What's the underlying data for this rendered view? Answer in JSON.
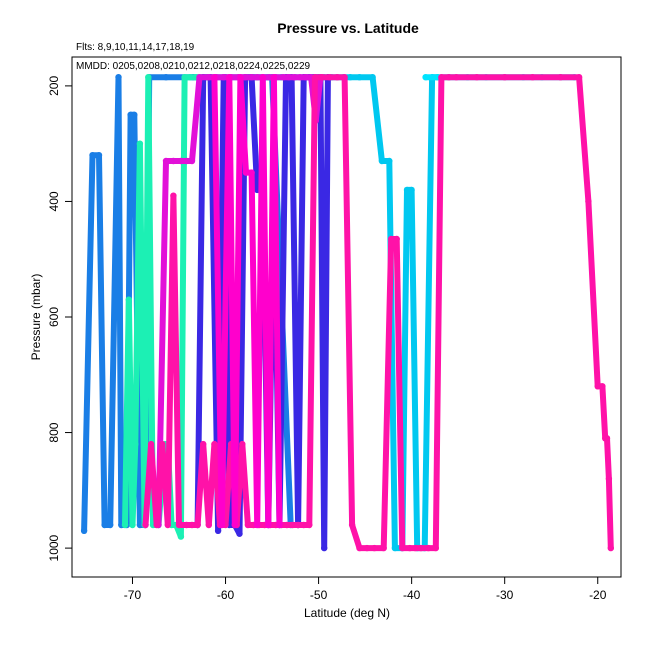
{
  "chart_data": {
    "type": "line",
    "title": "Pressure vs. Latitude",
    "subtitle": "Flts: 8,9,10,11,14,17,18,19",
    "legend_note": "MMDD: 0205,0208,0210,0212,0218,0224,0225,0229",
    "xlabel": "Latitude (deg N)",
    "ylabel": "Pressure (mbar)",
    "xlim": [
      -76.5,
      -17.5
    ],
    "ylim": [
      1050,
      150
    ],
    "y_reversed": true,
    "grid": false,
    "xticks": [
      -70,
      -60,
      -50,
      -40,
      -30,
      -20
    ],
    "yticks": [
      200,
      400,
      600,
      800,
      1000
    ],
    "series": [
      {
        "color": "#1a7ee6",
        "x": [
          -75.2,
          -74.3,
          -73.6,
          -73.0,
          -72.4,
          -71.5,
          -71.2,
          -70.6,
          -70.2,
          -69.8,
          -69.2,
          -68.6,
          -68.2,
          -66.4,
          -63.5,
          -60.0,
          -57.0,
          -55.0,
          -53.0
        ],
        "y": [
          970,
          320,
          320,
          960,
          960,
          185,
          960,
          960,
          250,
          250,
          960,
          960,
          185,
          185,
          185,
          185,
          185,
          185,
          960
        ]
      },
      {
        "color": "#00c8f0",
        "x": [
          -57.5,
          -55.5,
          -54.0,
          -52.5,
          -51.5,
          -50.6,
          -50.0,
          -49.4,
          -48.6,
          -48.0,
          -47.3,
          -46.6,
          -45.6,
          -44.2,
          -43.2,
          -42.4,
          -41.8,
          -41.0,
          -40.5,
          -40.0,
          -39.4,
          -38.6,
          -37.8,
          -37.2
        ],
        "y": [
          185,
          185,
          185,
          185,
          185,
          185,
          185,
          185,
          185,
          185,
          185,
          185,
          185,
          185,
          330,
          330,
          1000,
          1000,
          380,
          380,
          1000,
          1000,
          185,
          185
        ]
      },
      {
        "color": "#00e4ff",
        "x": [
          -38.5,
          -36.0,
          -34.0,
          -32.0,
          -30.0,
          -28.0,
          -26.0,
          -24.0,
          -22.5
        ],
        "y": [
          185,
          185,
          185,
          185,
          185,
          185,
          185,
          185,
          185
        ]
      },
      {
        "color": "#1cf0b4",
        "x": [
          -70.8,
          -70.4,
          -70.0,
          -69.7,
          -69.2,
          -68.7,
          -68.3,
          -67.8,
          -67.2,
          -66.5,
          -66.2,
          -65.8,
          -65.3,
          -64.8,
          -64.4,
          -63.8,
          -63.2,
          -62.4,
          -61.6,
          -61.0
        ],
        "y": [
          960,
          570,
          960,
          820,
          300,
          960,
          185,
          960,
          960,
          820,
          820,
          960,
          960,
          980,
          185,
          185,
          185,
          185,
          185,
          185
        ]
      },
      {
        "color": "#3a28e4",
        "x": [
          -63.0,
          -62.4,
          -61.6,
          -60.8,
          -60.2,
          -59.6,
          -59.0,
          -58.5,
          -57.9,
          -57.2,
          -56.6,
          -56.0,
          -55.4,
          -54.8,
          -54.2,
          -53.5,
          -52.9,
          -52.2,
          -51.6,
          -51.0,
          -50.4,
          -49.8,
          -49.4,
          -49.0
        ],
        "y": [
          960,
          185,
          185,
          970,
          185,
          960,
          960,
          975,
          185,
          185,
          380,
          380,
          960,
          380,
          960,
          185,
          185,
          960,
          185,
          185,
          185,
          185,
          1000,
          185
        ]
      },
      {
        "color": "#e210d8",
        "x": [
          -67.2,
          -66.4,
          -65.6,
          -64.8,
          -64.2,
          -63.6,
          -62.8,
          -61.8,
          -61.0,
          -60.2,
          -59.4,
          -58.6,
          -57.9,
          -57.2,
          -56.6,
          -56.0,
          -55.3,
          -54.6,
          -53.8,
          -53.2,
          -52.6,
          -52.0,
          -51.4,
          -50.8,
          -50.3,
          -49.8
        ],
        "y": [
          960,
          330,
          330,
          330,
          330,
          330,
          185,
          185,
          185,
          185,
          185,
          185,
          185,
          185,
          185,
          185,
          185,
          185,
          185,
          185,
          185,
          185,
          185,
          185,
          260,
          185
        ]
      },
      {
        "color": "#ff12a8",
        "x": [
          -68.6,
          -68.0,
          -67.4,
          -66.8,
          -66.2,
          -65.6,
          -65.0,
          -64.2,
          -63.6,
          -63.0,
          -62.4,
          -61.8,
          -61.2,
          -60.6,
          -60.0,
          -59.4,
          -58.8,
          -58.2,
          -57.6,
          -57.0,
          -56.4,
          -55.8,
          -55.2,
          -54.6,
          -54.0,
          -53.4,
          -52.8,
          -52.2,
          -51.6,
          -51.0,
          -50.4,
          -49.6,
          -48.8,
          -48.0,
          -47.2,
          -46.4,
          -45.6,
          -44.8,
          -44.0,
          -43.0,
          -42.2,
          -41.6,
          -41.0,
          -40.2,
          -39.6,
          -39.0,
          -38.2,
          -37.4,
          -36.8,
          -36.0,
          -35.2,
          -33.0,
          -30.0,
          -27.0,
          -24.0,
          -22.0,
          -21.0,
          -20.0,
          -19.5,
          -19.2,
          -19.0,
          -18.8,
          -18.6
        ],
        "y": [
          960,
          820,
          960,
          820,
          960,
          390,
          960,
          960,
          960,
          960,
          820,
          960,
          820,
          960,
          960,
          820,
          960,
          820,
          960,
          960,
          960,
          960,
          960,
          960,
          960,
          960,
          960,
          960,
          960,
          960,
          185,
          185,
          185,
          185,
          185,
          960,
          1000,
          1000,
          1000,
          1000,
          465,
          465,
          1000,
          1000,
          1000,
          1000,
          1000,
          1000,
          185,
          185,
          185,
          185,
          185,
          185,
          185,
          185,
          400,
          720,
          720,
          810,
          810,
          880,
          1000
        ]
      },
      {
        "color": "#ff00cc",
        "x": [
          -61.2,
          -60.4,
          -59.6,
          -59.0,
          -58.4,
          -57.8,
          -57.2,
          -56.6,
          -56.0,
          -55.4,
          -54.8,
          -54.2
        ],
        "y": [
          185,
          960,
          185,
          960,
          185,
          350,
          350,
          960,
          185,
          960,
          185,
          960
        ]
      }
    ]
  }
}
